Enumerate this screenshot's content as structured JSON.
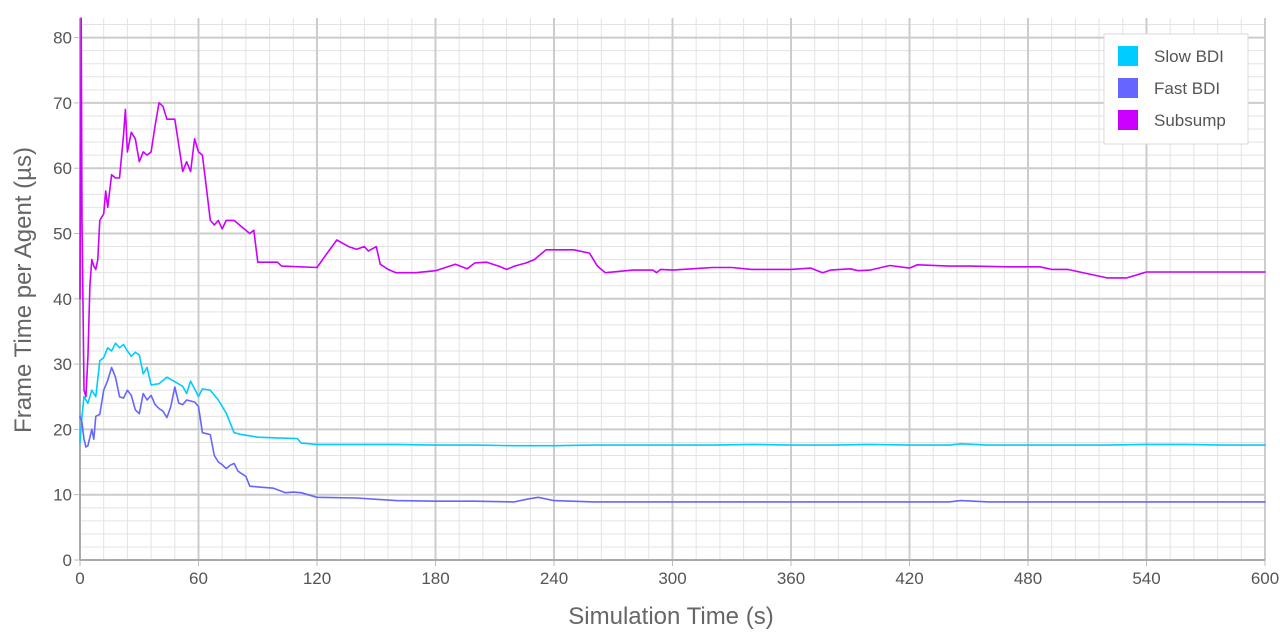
{
  "chart_data": {
    "type": "line",
    "xlabel": "Simulation Time (s)",
    "ylabel": "Frame Time per Agent (µs)",
    "xlim": [
      0,
      600
    ],
    "ylim": [
      0,
      83
    ],
    "x_ticks": [
      "0",
      "60",
      "120",
      "180",
      "240",
      "300",
      "360",
      "420",
      "480",
      "540",
      "600"
    ],
    "y_ticks": [
      "0",
      "10",
      "20",
      "30",
      "40",
      "50",
      "60",
      "70",
      "80"
    ],
    "grid": true,
    "legend_position": "top-right",
    "series": [
      {
        "name": "Slow BDI",
        "color": "#00ccff",
        "points": [
          [
            0,
            18
          ],
          [
            1,
            22
          ],
          [
            2,
            25
          ],
          [
            4,
            24
          ],
          [
            6,
            26
          ],
          [
            8,
            25
          ],
          [
            10,
            30.5
          ],
          [
            12,
            31
          ],
          [
            14,
            32.5
          ],
          [
            16,
            32
          ],
          [
            18,
            33.2
          ],
          [
            20,
            32.5
          ],
          [
            22,
            33
          ],
          [
            24,
            32
          ],
          [
            26,
            31.2
          ],
          [
            28,
            31.8
          ],
          [
            30,
            31.4
          ],
          [
            32,
            28.5
          ],
          [
            34,
            29.5
          ],
          [
            36,
            26.8
          ],
          [
            40,
            27
          ],
          [
            44,
            28
          ],
          [
            48,
            27.3
          ],
          [
            52,
            26.6
          ],
          [
            54,
            25.5
          ],
          [
            56,
            27.4
          ],
          [
            58,
            26.2
          ],
          [
            60,
            25
          ],
          [
            62,
            26.2
          ],
          [
            66,
            26
          ],
          [
            70,
            24.5
          ],
          [
            74,
            22.5
          ],
          [
            78,
            19.5
          ],
          [
            82,
            19.2
          ],
          [
            90,
            18.8
          ],
          [
            100,
            18.7
          ],
          [
            110,
            18.6
          ],
          [
            112,
            17.9
          ],
          [
            120,
            17.7
          ],
          [
            140,
            17.7
          ],
          [
            160,
            17.7
          ],
          [
            180,
            17.6
          ],
          [
            200,
            17.6
          ],
          [
            220,
            17.5
          ],
          [
            240,
            17.5
          ],
          [
            260,
            17.6
          ],
          [
            280,
            17.6
          ],
          [
            300,
            17.6
          ],
          [
            320,
            17.6
          ],
          [
            340,
            17.7
          ],
          [
            360,
            17.6
          ],
          [
            380,
            17.6
          ],
          [
            400,
            17.7
          ],
          [
            420,
            17.6
          ],
          [
            440,
            17.6
          ],
          [
            446,
            17.8
          ],
          [
            460,
            17.6
          ],
          [
            480,
            17.6
          ],
          [
            500,
            17.6
          ],
          [
            520,
            17.6
          ],
          [
            540,
            17.7
          ],
          [
            560,
            17.7
          ],
          [
            580,
            17.6
          ],
          [
            600,
            17.6
          ]
        ]
      },
      {
        "name": "Fast BDI",
        "color": "#6666ff",
        "points": [
          [
            0,
            22
          ],
          [
            1,
            21
          ],
          [
            2,
            18.5
          ],
          [
            3,
            17.3
          ],
          [
            4,
            17.5
          ],
          [
            6,
            20
          ],
          [
            7,
            18.5
          ],
          [
            8,
            22
          ],
          [
            10,
            22.3
          ],
          [
            12,
            26
          ],
          [
            14,
            27.5
          ],
          [
            16,
            29.5
          ],
          [
            18,
            28
          ],
          [
            20,
            25
          ],
          [
            22,
            24.8
          ],
          [
            24,
            26
          ],
          [
            26,
            25.2
          ],
          [
            28,
            23
          ],
          [
            30,
            22.4
          ],
          [
            32,
            25.5
          ],
          [
            34,
            24.5
          ],
          [
            36,
            25.2
          ],
          [
            38,
            23.8
          ],
          [
            40,
            23.2
          ],
          [
            42,
            22.8
          ],
          [
            44,
            21.8
          ],
          [
            46,
            23.5
          ],
          [
            48,
            26.5
          ],
          [
            50,
            24
          ],
          [
            52,
            23.8
          ],
          [
            54,
            24.5
          ],
          [
            58,
            24.2
          ],
          [
            60,
            23.5
          ],
          [
            62,
            19.5
          ],
          [
            66,
            19.2
          ],
          [
            68,
            16
          ],
          [
            70,
            15
          ],
          [
            72,
            14.6
          ],
          [
            74,
            14
          ],
          [
            76,
            14.5
          ],
          [
            78,
            14.8
          ],
          [
            80,
            13.6
          ],
          [
            84,
            12.8
          ],
          [
            86,
            11.3
          ],
          [
            90,
            11.2
          ],
          [
            98,
            11
          ],
          [
            104,
            10.3
          ],
          [
            108,
            10.4
          ],
          [
            112,
            10.3
          ],
          [
            120,
            9.6
          ],
          [
            140,
            9.5
          ],
          [
            160,
            9.1
          ],
          [
            180,
            9
          ],
          [
            200,
            9
          ],
          [
            220,
            8.9
          ],
          [
            226,
            9.3
          ],
          [
            232,
            9.6
          ],
          [
            240,
            9.1
          ],
          [
            260,
            8.9
          ],
          [
            280,
            8.9
          ],
          [
            300,
            8.9
          ],
          [
            320,
            8.9
          ],
          [
            340,
            8.9
          ],
          [
            360,
            8.9
          ],
          [
            380,
            8.9
          ],
          [
            400,
            8.9
          ],
          [
            420,
            8.9
          ],
          [
            440,
            8.9
          ],
          [
            446,
            9.1
          ],
          [
            460,
            8.9
          ],
          [
            480,
            8.9
          ],
          [
            500,
            8.9
          ],
          [
            520,
            8.9
          ],
          [
            540,
            8.9
          ],
          [
            560,
            8.9
          ],
          [
            580,
            8.9
          ],
          [
            600,
            8.9
          ]
        ]
      },
      {
        "name": "Subsump",
        "color": "#cc00ff",
        "points": [
          [
            0,
            40
          ],
          [
            0.6,
            83
          ],
          [
            1,
            52
          ],
          [
            2,
            26
          ],
          [
            3,
            25
          ],
          [
            4,
            31
          ],
          [
            5,
            42
          ],
          [
            6,
            46
          ],
          [
            7,
            45
          ],
          [
            8,
            44.5
          ],
          [
            9,
            46
          ],
          [
            10,
            52
          ],
          [
            12,
            53
          ],
          [
            13,
            56.5
          ],
          [
            14,
            54
          ],
          [
            16,
            59
          ],
          [
            18,
            58.5
          ],
          [
            20,
            58.5
          ],
          [
            22,
            65
          ],
          [
            23,
            69
          ],
          [
            24,
            62.5
          ],
          [
            26,
            65.5
          ],
          [
            28,
            64.5
          ],
          [
            30,
            61
          ],
          [
            32,
            62.5
          ],
          [
            34,
            62
          ],
          [
            36,
            62.5
          ],
          [
            38,
            66.5
          ],
          [
            40,
            70
          ],
          [
            42,
            69.5
          ],
          [
            44,
            67.5
          ],
          [
            48,
            67.5
          ],
          [
            50,
            63.5
          ],
          [
            52,
            59.5
          ],
          [
            54,
            61
          ],
          [
            56,
            59.5
          ],
          [
            58,
            64.5
          ],
          [
            60,
            62.5
          ],
          [
            62,
            62
          ],
          [
            64,
            57
          ],
          [
            66,
            52
          ],
          [
            68,
            51.3
          ],
          [
            70,
            52
          ],
          [
            72,
            50.7
          ],
          [
            74,
            52
          ],
          [
            78,
            52
          ],
          [
            82,
            51
          ],
          [
            86,
            50
          ],
          [
            88,
            50.5
          ],
          [
            90,
            45.6
          ],
          [
            100,
            45.6
          ],
          [
            102,
            45
          ],
          [
            120,
            44.8
          ],
          [
            124,
            46.5
          ],
          [
            130,
            49
          ],
          [
            136,
            48
          ],
          [
            140,
            47.6
          ],
          [
            144,
            48
          ],
          [
            146,
            47.3
          ],
          [
            150,
            48
          ],
          [
            152,
            45.3
          ],
          [
            156,
            44.5
          ],
          [
            160,
            44
          ],
          [
            170,
            44
          ],
          [
            180,
            44.3
          ],
          [
            190,
            45.3
          ],
          [
            196,
            44.6
          ],
          [
            200,
            45.5
          ],
          [
            206,
            45.6
          ],
          [
            212,
            45
          ],
          [
            216,
            44.5
          ],
          [
            220,
            45
          ],
          [
            226,
            45.5
          ],
          [
            230,
            46
          ],
          [
            236,
            47.5
          ],
          [
            250,
            47.5
          ],
          [
            258,
            47
          ],
          [
            262,
            45
          ],
          [
            266,
            44
          ],
          [
            280,
            44.4
          ],
          [
            290,
            44.4
          ],
          [
            292,
            44
          ],
          [
            294,
            44.5
          ],
          [
            300,
            44.4
          ],
          [
            310,
            44.6
          ],
          [
            320,
            44.8
          ],
          [
            330,
            44.8
          ],
          [
            340,
            44.5
          ],
          [
            360,
            44.5
          ],
          [
            370,
            44.7
          ],
          [
            376,
            44
          ],
          [
            380,
            44.4
          ],
          [
            390,
            44.6
          ],
          [
            394,
            44.3
          ],
          [
            400,
            44.4
          ],
          [
            410,
            45.1
          ],
          [
            420,
            44.7
          ],
          [
            424,
            45.2
          ],
          [
            440,
            45
          ],
          [
            450,
            45
          ],
          [
            470,
            44.9
          ],
          [
            480,
            44.9
          ],
          [
            486,
            44.9
          ],
          [
            492,
            44.5
          ],
          [
            500,
            44.5
          ],
          [
            520,
            43.2
          ],
          [
            530,
            43.2
          ],
          [
            540,
            44.1
          ],
          [
            560,
            44.1
          ],
          [
            580,
            44.1
          ],
          [
            600,
            44.1
          ]
        ]
      }
    ]
  }
}
